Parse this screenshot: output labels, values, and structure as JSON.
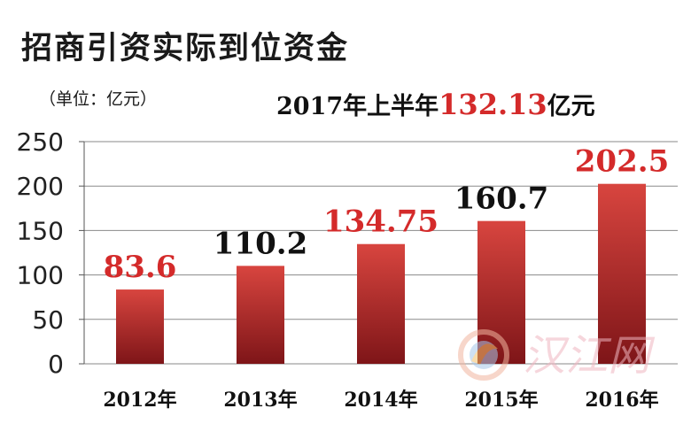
{
  "title": "招商引资实际到位资金",
  "unit_label": "（单位：亿元）",
  "headline": {
    "prefix": "2017年上半年",
    "value": "132.13",
    "suffix": "亿元"
  },
  "watermark": {
    "text": "汉江网"
  },
  "chart_data": {
    "type": "bar",
    "title": "招商引资实际到位资金",
    "ylabel": "（单位：亿元）",
    "categories": [
      "2012年",
      "2013年",
      "2014年",
      "2015年",
      "2016年"
    ],
    "values": [
      83.6,
      110.2,
      134.75,
      160.7,
      202.5
    ],
    "data_labels": [
      "83.6",
      "110.2",
      "134.75",
      "160.7",
      "202.5"
    ],
    "label_colors": [
      "#d42a2a",
      "#111111",
      "#d42a2a",
      "#111111",
      "#d42a2a"
    ],
    "ylim": [
      0,
      250
    ],
    "yticks": [
      0,
      50,
      100,
      150,
      200,
      250
    ],
    "grid": true,
    "bar_color": "#b8262a",
    "legend": false
  }
}
